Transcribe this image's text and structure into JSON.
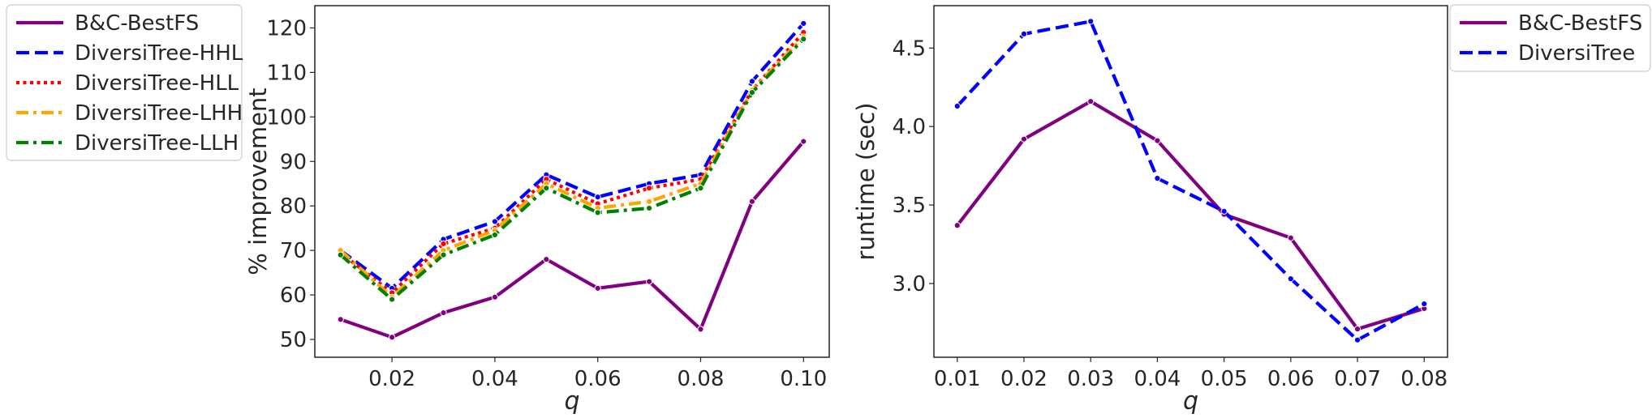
{
  "chart_data": [
    {
      "type": "line",
      "xlabel": "q",
      "ylabel": "% improvement",
      "xlim": [
        0.005,
        0.105
      ],
      "ylim": [
        46,
        125
      ],
      "xticks": [
        0.02,
        0.04,
        0.06,
        0.08,
        0.1
      ],
      "xtick_labels": [
        "0.02",
        "0.04",
        "0.06",
        "0.08",
        "0.10"
      ],
      "yticks": [
        50,
        60,
        70,
        80,
        90,
        100,
        110,
        120
      ],
      "ytick_labels": [
        "50",
        "60",
        "70",
        "80",
        "90",
        "100",
        "110",
        "120"
      ],
      "grid": false,
      "legend_position": "outside-left",
      "x": [
        0.01,
        0.02,
        0.03,
        0.04,
        0.05,
        0.06,
        0.07,
        0.08,
        0.09,
        0.1
      ],
      "series": [
        {
          "name": "B&C-BestFS",
          "color": "#800080",
          "dash": "solid",
          "values": [
            54.5,
            50.5,
            56.0,
            59.5,
            68.0,
            61.5,
            63.0,
            52.3,
            81.0,
            94.5
          ]
        },
        {
          "name": "DiversiTree-HHL",
          "color": "#0000ff",
          "dash": "dashed",
          "values": [
            70.0,
            61.5,
            72.5,
            76.5,
            87.0,
            82.0,
            85.0,
            87.0,
            108.0,
            121.0
          ]
        },
        {
          "name": "DiversiTree-HLL",
          "color": "#ff0000",
          "dash": "dotted",
          "values": [
            69.5,
            60.5,
            71.5,
            75.0,
            86.0,
            80.5,
            84.0,
            86.0,
            106.0,
            119.0
          ]
        },
        {
          "name": "DiversiTree-LHH",
          "color": "#ffa500",
          "dash": "dashdot",
          "values": [
            70.0,
            59.5,
            70.0,
            74.5,
            85.0,
            79.5,
            81.0,
            85.0,
            106.0,
            118.0
          ]
        },
        {
          "name": "DiversiTree-LLH",
          "color": "#008000",
          "dash": "dashdot",
          "values": [
            69.0,
            59.0,
            69.0,
            73.5,
            84.0,
            78.5,
            79.5,
            84.0,
            105.5,
            117.5
          ]
        }
      ]
    },
    {
      "type": "line",
      "xlabel": "q",
      "ylabel": "runtime (sec)",
      "xlim": [
        0.0065,
        0.0835
      ],
      "ylim": [
        2.53,
        4.77
      ],
      "xticks": [
        0.01,
        0.02,
        0.03,
        0.04,
        0.05,
        0.06,
        0.07,
        0.08
      ],
      "xtick_labels": [
        "0.01",
        "0.02",
        "0.03",
        "0.04",
        "0.05",
        "0.06",
        "0.07",
        "0.08"
      ],
      "yticks": [
        3.0,
        3.5,
        4.0,
        4.5
      ],
      "ytick_labels": [
        "3.0",
        "3.5",
        "4.0",
        "4.5"
      ],
      "grid": false,
      "legend_position": "outside-right",
      "x": [
        0.01,
        0.02,
        0.03,
        0.04,
        0.05,
        0.06,
        0.07,
        0.08
      ],
      "series": [
        {
          "name": "B&C-BestFS",
          "color": "#800080",
          "dash": "solid",
          "values": [
            3.37,
            3.92,
            4.16,
            3.91,
            3.44,
            3.29,
            2.71,
            2.84
          ]
        },
        {
          "name": "DiversiTree",
          "color": "#0000ff",
          "dash": "dashed",
          "values": [
            4.13,
            4.59,
            4.67,
            3.67,
            3.46,
            3.03,
            2.64,
            2.87
          ]
        }
      ]
    }
  ]
}
